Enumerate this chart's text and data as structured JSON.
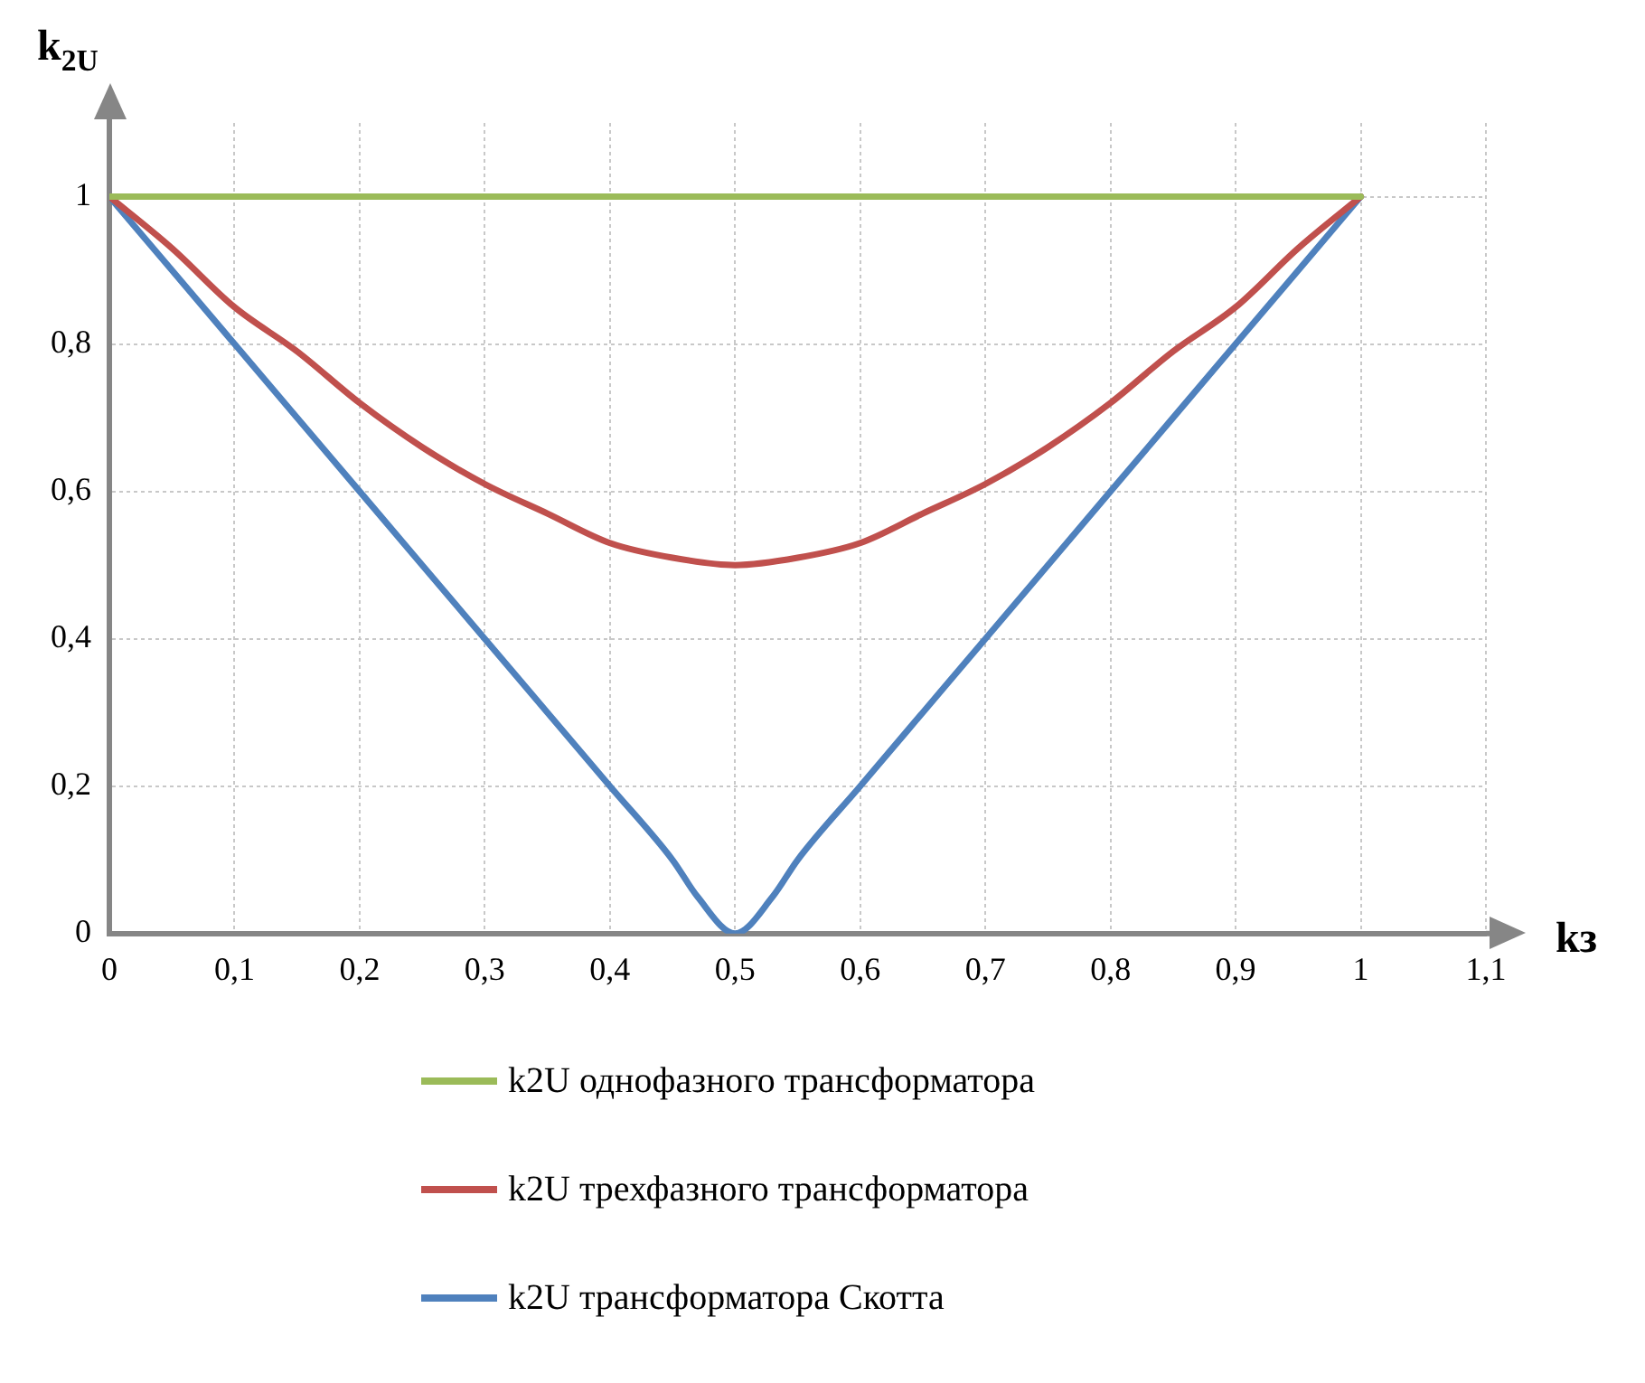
{
  "chart_data": {
    "type": "line",
    "xlabel": "kз",
    "ylabel": "k$_{2U}$",
    "xlim": [
      0,
      1.1
    ],
    "xticks": [
      0,
      {
        "value": 0.1,
        "label": "0,1"
      },
      {
        "value": 0.2,
        "label": "0,2"
      },
      {
        "value": 0.3,
        "label": "0,3"
      },
      {
        "value": 0.4,
        "label": "0,4"
      },
      {
        "value": 0.5,
        "label": "0,5"
      },
      {
        "value": 0.6,
        "label": "0,6"
      },
      {
        "value": 0.7,
        "label": "0,7"
      },
      {
        "value": 0.8,
        "label": "0,8"
      },
      {
        "value": 0.9,
        "label": "0,9"
      },
      1,
      {
        "value": 1.1,
        "label": "1,1"
      }
    ],
    "ylim": [
      0,
      1.1
    ],
    "yticks": [
      0,
      {
        "value": 0.2,
        "label": "0,2"
      },
      {
        "value": 0.4,
        "label": "0,4"
      },
      {
        "value": 0.6,
        "label": "0,6"
      },
      {
        "value": 0.8,
        "label": "0,8"
      },
      1
    ],
    "grid": true,
    "legend": "bottom",
    "marker": "none",
    "line_style": "solid",
    "series": [
      {
        "name": "k2U однофазного трансформатора",
        "color": "#9bbb59",
        "x": [
          0,
          1
        ],
        "values": [
          1,
          1
        ]
      },
      {
        "name": "k2U трехфазного трансформатора",
        "color": "#c0504d",
        "x": [
          0,
          0.05,
          0.1,
          0.15,
          0.2,
          0.25,
          0.3,
          0.35,
          0.4,
          0.45,
          0.5,
          0.55,
          0.6,
          0.65,
          0.7,
          0.75,
          0.8,
          0.85,
          0.9,
          0.95,
          1
        ],
        "values": [
          1,
          0.93,
          0.85,
          0.79,
          0.72,
          0.66,
          0.61,
          0.57,
          0.53,
          0.51,
          0.5,
          0.51,
          0.53,
          0.57,
          0.61,
          0.66,
          0.72,
          0.79,
          0.85,
          0.93,
          1
        ]
      },
      {
        "name": "k2U трансформатора Скотта",
        "color": "#4f81bd",
        "x": [
          0,
          0.1,
          0.2,
          0.3,
          0.4,
          0.45,
          0.47,
          0.5,
          0.53,
          0.55,
          0.6,
          0.7,
          0.8,
          0.9,
          1
        ],
        "values": [
          1,
          0.8,
          0.6,
          0.4,
          0.2,
          0.1,
          0.05,
          0,
          0.05,
          0.1,
          0.2,
          0.4,
          0.6,
          0.8,
          1
        ]
      }
    ]
  }
}
